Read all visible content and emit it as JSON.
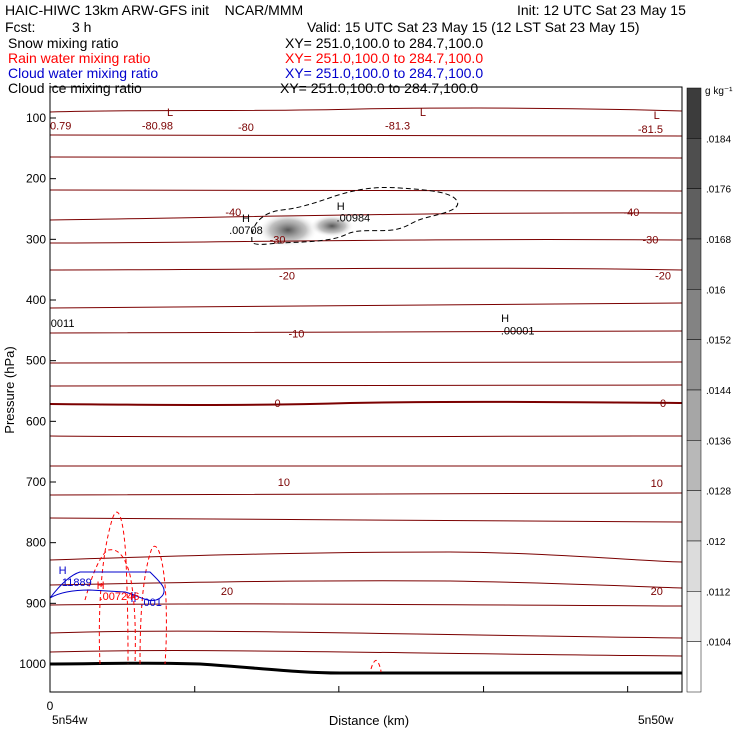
{
  "header": {
    "title_line1": "HAIC-HIWC 13km ARW-GFS init    NCAR/MMM",
    "init": "Init: 12 UTC Sat 23 May 15",
    "fcst_label": "Fcst:",
    "fcst_value": "3 h",
    "valid": "Valid: 15 UTC Sat 23 May 15 (12 LST Sat 23 May 15)"
  },
  "fields": [
    {
      "name": "Snow mixing ratio",
      "xy": "XY= 251.0,100.0 to 284.7,100.0",
      "color": "#000000"
    },
    {
      "name": "Rain water mixing ratio",
      "xy": "XY= 251.0,100.0 to 284.7,100.0",
      "color": "#ff0000"
    },
    {
      "name": "Cloud water mixing ratio",
      "xy": "XY= 251.0,100.0 to 284.7,100.0",
      "color": "#0000cc"
    },
    {
      "name": "Cloud ice mixing ratio",
      "xy": "XY= 251.0,100.0 to 284.7,100.0",
      "color": "#000000"
    }
  ],
  "chart_data": {
    "type": "cross-section",
    "xlabel": "Distance (km)",
    "ylabel": "Pressure (hPa)",
    "x_start_label": "5n54w",
    "x_end_label": "5n50w",
    "x_origin_label": "0",
    "yticks": [
      100,
      200,
      300,
      400,
      500,
      600,
      700,
      800,
      900,
      1000
    ],
    "ylim": [
      1050,
      75
    ],
    "colorbar": {
      "unit": "g kg⁻¹",
      "labels": [
        ".0184",
        ".0176",
        ".0168",
        ".016",
        ".0152",
        ".0144",
        ".0136",
        ".0128",
        ".012",
        ".0112",
        ".0104"
      ]
    },
    "temperature_contours": [
      {
        "label": "-80",
        "pressure": 115
      },
      {
        "label": "-80.98",
        "pressure": 112
      },
      {
        "label": "-81.3",
        "pressure": 112
      },
      {
        "label": "-81.5",
        "pressure": 118
      },
      {
        "label": "-40",
        "pressure": 255
      },
      {
        "label": "-30",
        "pressure": 300
      },
      {
        "label": "-20",
        "pressure": 360
      },
      {
        "label": "-10",
        "pressure": 455
      },
      {
        "label": "0",
        "pressure": 570
      },
      {
        "label": "10",
        "pressure": 700
      },
      {
        "label": "20",
        "pressure": 880
      }
    ],
    "annotations": [
      {
        "text": "L",
        "x": 0.19,
        "p": 90
      },
      {
        "text": "L",
        "x": 0.59,
        "p": 90
      },
      {
        "text": "L",
        "x": 0.96,
        "p": 95
      },
      {
        "text": "0.79",
        "x": 0.0,
        "p": 112
      },
      {
        "text": "H",
        "x": 0.31,
        "p": 265
      },
      {
        "text": ".00708",
        "x": 0.31,
        "p": 285
      },
      {
        "text": "H",
        "x": 0.46,
        "p": 245
      },
      {
        "text": ".00984",
        "x": 0.48,
        "p": 264
      },
      {
        "text": "H",
        "x": 0.72,
        "p": 430
      },
      {
        "text": ".00001",
        "x": 0.74,
        "p": 450
      },
      {
        "text": "0011",
        "x": 0.02,
        "p": 438
      },
      {
        "text": "H",
        "x": 0.02,
        "p": 845
      },
      {
        "text": ".11889",
        "x": 0.04,
        "p": 865
      },
      {
        "text": "H",
        "x": 0.08,
        "p": 870
      },
      {
        "text": ".007246",
        "x": 0.11,
        "p": 888
      },
      {
        "text": ".001",
        "x": 0.16,
        "p": 898
      }
    ]
  }
}
